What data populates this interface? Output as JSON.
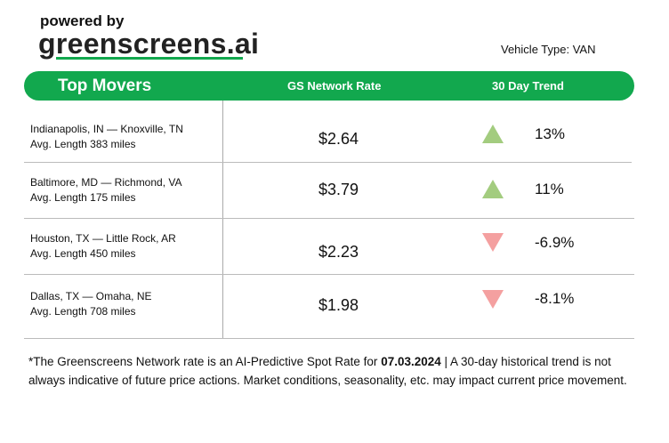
{
  "branding": {
    "powered_by": "powered by",
    "logo": "greenscreens.ai"
  },
  "vehicle_type": "Vehicle Type: VAN",
  "header": {
    "title": "Top Movers",
    "col_rate": "GS Network Rate",
    "col_trend": "30 Day Trend",
    "color": "#12a84e"
  },
  "rows": [
    {
      "route": "Indianapolis, IN — Knoxville, TN",
      "length": "Avg. Length 383 miles",
      "rate": "$2.64",
      "trend": "13%",
      "direction": "up"
    },
    {
      "route": "Baltimore, MD — Richmond, VA",
      "length": "Avg. Length 175 miles",
      "rate": "$3.79",
      "trend": "11%",
      "direction": "up"
    },
    {
      "route": "Houston, TX — Little Rock, AR",
      "length": "Avg. Length 450 miles",
      "rate": "$2.23",
      "trend": "-6.9%",
      "direction": "down"
    },
    {
      "route": "Dallas, TX — Omaha, NE",
      "length": "Avg. Length 708 miles",
      "rate": "$1.98",
      "trend": "-8.1%",
      "direction": "down"
    }
  ],
  "colors": {
    "up": "#a3cc7f",
    "down": "#f4a0a0"
  },
  "footnote": {
    "pre": "*The Greenscreens Network rate is an AI-Predictive Spot Rate for ",
    "date": "07.03.2024",
    "post": " | A 30-day historical trend is not always indicative of future price actions. Market conditions, seasonality, etc. may impact current price movement."
  }
}
